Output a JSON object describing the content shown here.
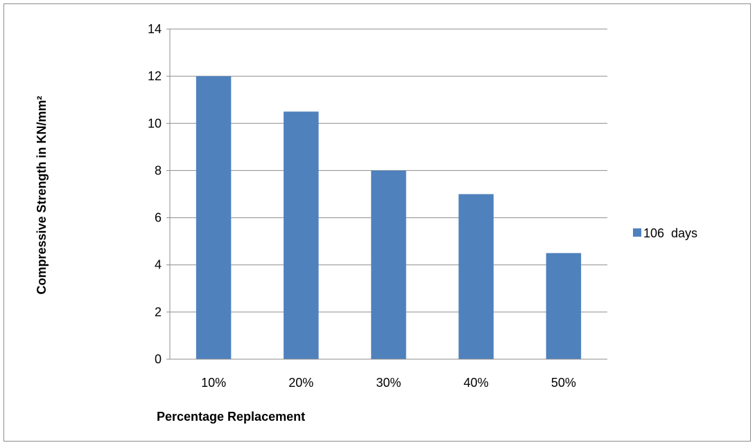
{
  "chart_data": {
    "type": "bar",
    "categories": [
      "10%",
      "20%",
      "30%",
      "40%",
      "50%"
    ],
    "series": [
      {
        "name": "106  days",
        "values": [
          12,
          10.5,
          8,
          7,
          4.5
        ],
        "color": "#4f81bd"
      }
    ],
    "title": "",
    "xlabel": "Percentage Replacement",
    "ylabel": "Compressive Strength in KN/mm²",
    "ylim": [
      0,
      14
    ],
    "yticks": [
      0,
      2,
      4,
      6,
      8,
      10,
      12,
      14
    ],
    "grid": true,
    "legend_position": "right",
    "gridline_color": "#8c8c8c",
    "frame_color": "#8c8c8c"
  }
}
